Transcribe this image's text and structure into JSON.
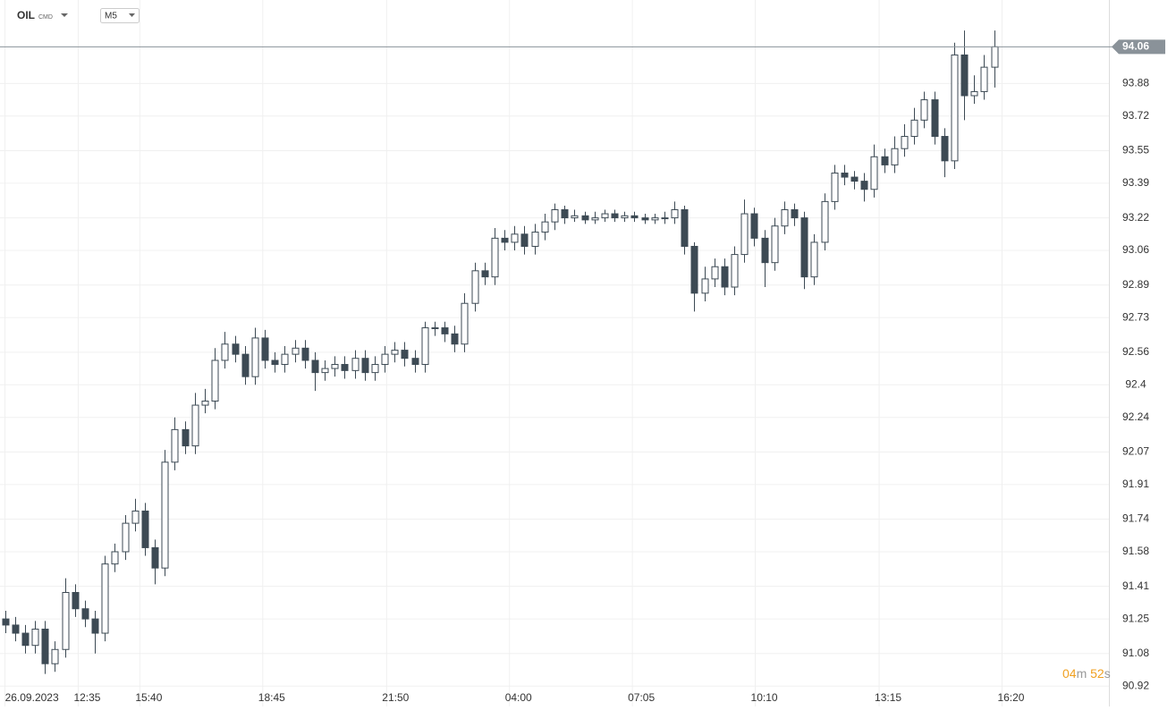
{
  "chart_data": {
    "type": "candlestick",
    "symbol": "OIL",
    "symbol_tag": "CMD",
    "timeframe": "M5",
    "current_price": 94.06,
    "countdown": {
      "minutes": "04",
      "minutes_unit": "m",
      "seconds": "52",
      "seconds_unit": "s"
    },
    "up_color": "#ffffff",
    "down_color": "#3d4a54",
    "outline_color": "#3d4a54",
    "grid": true,
    "ylim": [
      90.82,
      94.29
    ],
    "yticks": [
      93.88,
      93.72,
      93.55,
      93.39,
      93.22,
      93.06,
      92.89,
      92.73,
      92.56,
      92.4,
      92.24,
      92.07,
      91.91,
      91.74,
      91.58,
      91.41,
      91.25,
      91.08,
      90.92
    ],
    "xlim": [
      -0.5,
      110.5
    ],
    "xticks": [
      {
        "value": 0,
        "label": "26.09.2023"
      },
      {
        "value": 7.33,
        "label": "12:35"
      },
      {
        "value": 13.5,
        "label": "15:40"
      },
      {
        "value": 25.8,
        "label": "18:45"
      },
      {
        "value": 38.2,
        "label": "21:50"
      },
      {
        "value": 50.5,
        "label": "04:00"
      },
      {
        "value": 62.8,
        "label": "07:05"
      },
      {
        "value": 75.1,
        "label": "10:10"
      },
      {
        "value": 87.5,
        "label": "13:15"
      },
      {
        "value": 99.8,
        "label": "16:20"
      }
    ],
    "open": [
      91.25,
      91.22,
      91.18,
      91.12,
      91.2,
      91.03,
      91.1,
      91.38,
      91.3,
      91.25,
      91.18,
      91.52,
      91.58,
      91.72,
      91.78,
      91.6,
      91.5,
      92.02,
      92.18,
      92.1,
      92.3,
      92.32,
      92.52,
      92.6,
      92.55,
      92.44,
      92.63,
      92.52,
      92.5,
      92.55,
      92.58,
      92.52,
      92.46,
      92.48,
      92.5,
      92.47,
      92.53,
      92.46,
      92.5,
      92.55,
      92.57,
      92.53,
      92.5,
      92.68,
      92.68,
      92.65,
      92.6,
      92.8,
      92.96,
      92.93,
      93.12,
      93.1,
      93.14,
      93.08,
      93.15,
      93.2,
      93.26,
      93.22,
      93.23,
      93.21,
      93.22,
      93.24,
      93.22,
      93.23,
      93.22,
      93.21,
      93.22,
      93.22,
      93.26,
      93.08,
      92.85,
      92.92,
      92.98,
      92.88,
      93.04,
      93.24,
      93.12,
      93.0,
      93.18,
      93.26,
      93.22,
      92.93,
      93.1,
      93.3,
      93.44,
      93.42,
      93.4,
      93.36,
      93.52,
      93.48,
      93.56,
      93.62,
      93.7,
      93.8,
      93.62,
      93.5,
      94.02,
      93.82,
      93.84,
      93.96
    ],
    "high": [
      91.29,
      91.26,
      91.22,
      91.24,
      91.24,
      91.14,
      91.45,
      91.42,
      91.34,
      91.29,
      91.56,
      91.62,
      91.76,
      91.84,
      91.82,
      91.64,
      92.08,
      92.24,
      92.22,
      92.36,
      92.38,
      92.58,
      92.66,
      92.64,
      92.59,
      92.68,
      92.67,
      92.56,
      92.59,
      92.62,
      92.62,
      92.56,
      92.52,
      92.54,
      92.54,
      92.57,
      92.57,
      92.54,
      92.59,
      92.61,
      92.61,
      92.57,
      92.71,
      92.71,
      92.71,
      92.69,
      92.85,
      93.0,
      93.0,
      93.17,
      93.16,
      93.18,
      93.18,
      93.19,
      93.24,
      93.29,
      93.28,
      93.26,
      93.25,
      93.25,
      93.26,
      93.26,
      93.25,
      93.25,
      93.24,
      93.24,
      93.25,
      93.3,
      93.28,
      93.1,
      92.98,
      93.02,
      93.02,
      93.08,
      93.31,
      93.27,
      93.16,
      93.22,
      93.3,
      93.29,
      93.25,
      93.14,
      93.34,
      93.48,
      93.48,
      93.45,
      93.44,
      93.58,
      93.56,
      93.62,
      93.68,
      93.76,
      93.84,
      93.84,
      93.66,
      94.08,
      94.14,
      93.92,
      94.02,
      94.14
    ],
    "low": [
      91.18,
      91.14,
      91.08,
      91.08,
      90.98,
      90.99,
      91.06,
      91.26,
      91.21,
      91.08,
      91.14,
      91.48,
      91.54,
      91.68,
      91.56,
      91.42,
      91.46,
      91.98,
      92.06,
      92.06,
      92.26,
      92.28,
      92.48,
      92.51,
      92.4,
      92.4,
      92.48,
      92.46,
      92.46,
      92.51,
      92.48,
      92.37,
      92.42,
      92.44,
      92.43,
      92.43,
      92.42,
      92.42,
      92.46,
      92.51,
      92.49,
      92.46,
      92.46,
      92.64,
      92.61,
      92.56,
      92.56,
      92.76,
      92.89,
      92.89,
      93.06,
      93.06,
      93.04,
      93.04,
      93.11,
      93.16,
      93.19,
      93.2,
      93.19,
      93.19,
      93.2,
      93.2,
      93.2,
      93.2,
      93.19,
      93.19,
      93.19,
      93.19,
      93.04,
      92.76,
      92.81,
      92.88,
      92.84,
      92.84,
      93.0,
      93.08,
      92.88,
      92.96,
      93.14,
      93.18,
      92.87,
      92.89,
      93.06,
      93.26,
      93.38,
      93.36,
      93.3,
      93.32,
      93.44,
      93.44,
      93.52,
      93.58,
      93.66,
      93.58,
      93.42,
      93.46,
      93.7,
      93.78,
      93.8,
      93.86
    ],
    "close": [
      91.22,
      91.18,
      91.12,
      91.2,
      91.03,
      91.1,
      91.38,
      91.3,
      91.25,
      91.18,
      91.52,
      91.58,
      91.72,
      91.78,
      91.6,
      91.5,
      92.02,
      92.18,
      92.1,
      92.3,
      92.32,
      92.52,
      92.6,
      92.55,
      92.44,
      92.63,
      92.52,
      92.5,
      92.55,
      92.58,
      92.52,
      92.46,
      92.48,
      92.5,
      92.47,
      92.53,
      92.46,
      92.5,
      92.55,
      92.57,
      92.53,
      92.5,
      92.68,
      92.68,
      92.65,
      92.6,
      92.8,
      92.96,
      92.93,
      93.12,
      93.1,
      93.14,
      93.08,
      93.15,
      93.2,
      93.26,
      93.22,
      93.23,
      93.21,
      93.22,
      93.24,
      93.22,
      93.23,
      93.22,
      93.21,
      93.22,
      93.22,
      93.26,
      93.08,
      92.85,
      92.92,
      92.98,
      92.88,
      93.04,
      93.24,
      93.12,
      93.0,
      93.18,
      93.26,
      93.22,
      92.93,
      93.1,
      93.3,
      93.44,
      93.42,
      93.4,
      93.36,
      93.52,
      93.48,
      93.56,
      93.62,
      93.7,
      93.8,
      93.62,
      93.5,
      94.02,
      93.82,
      93.84,
      93.96,
      94.06
    ]
  }
}
